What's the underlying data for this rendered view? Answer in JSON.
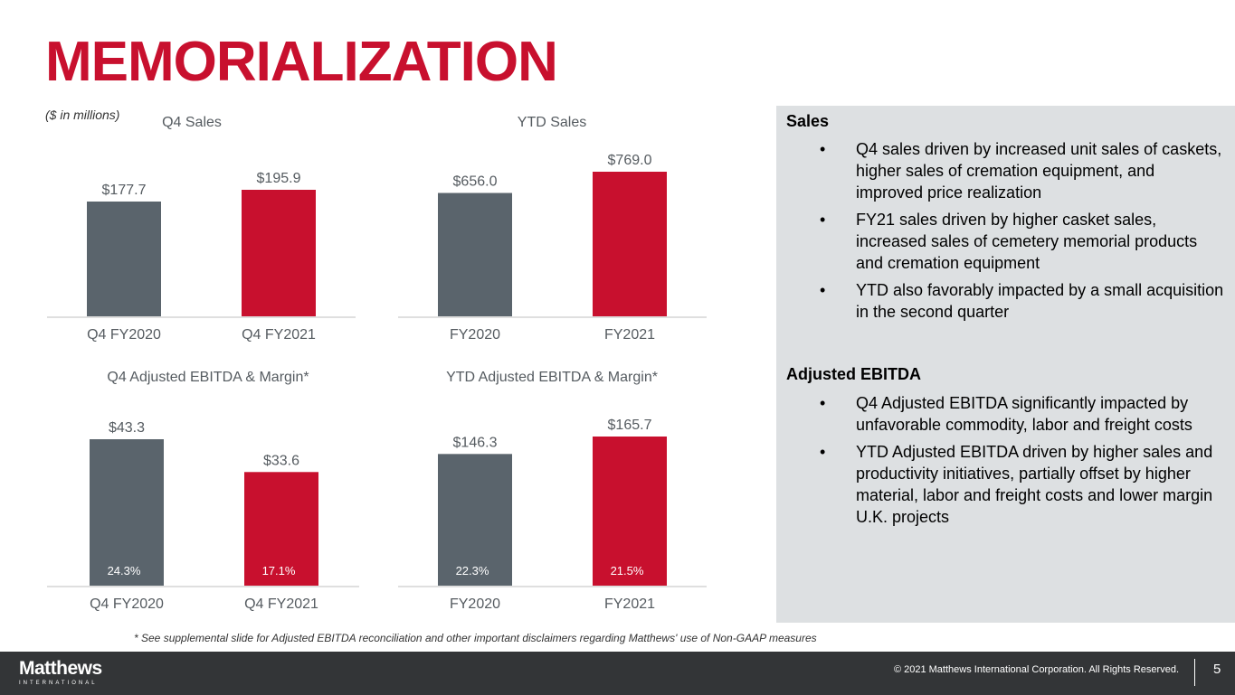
{
  "title": "MEMORIALIZATION",
  "units_note": "($ in millions)",
  "colors": {
    "prior": "#5a646c",
    "current": "#c8102e",
    "brand_red": "#c8102e"
  },
  "chart_data": [
    {
      "type": "bar",
      "title": "Q4 Sales",
      "categories": [
        "Q4 FY2020",
        "Q4 FY2021"
      ],
      "values": [
        177.7,
        195.9
      ],
      "value_labels": [
        "$177.7",
        "$195.9"
      ],
      "ylim": [
        0,
        210
      ]
    },
    {
      "type": "bar",
      "title": "YTD Sales",
      "categories": [
        "FY2020",
        "FY2021"
      ],
      "values": [
        656.0,
        769.0
      ],
      "value_labels": [
        "$656.0",
        "$769.0"
      ],
      "ylim": [
        0,
        825
      ]
    },
    {
      "type": "bar",
      "title": "Q4 Adjusted EBITDA & Margin*",
      "categories": [
        "Q4 FY2020",
        "Q4 FY2021"
      ],
      "values": [
        43.3,
        33.6
      ],
      "value_labels": [
        "$43.3",
        "$33.6"
      ],
      "margins": [
        "24.3%",
        "17.1%"
      ],
      "ylim": [
        0,
        47
      ]
    },
    {
      "type": "bar",
      "title": "YTD Adjusted EBITDA & Margin*",
      "categories": [
        "FY2020",
        "FY2021"
      ],
      "values": [
        146.3,
        165.7
      ],
      "value_labels": [
        "$146.3",
        "$165.7"
      ],
      "margins": [
        "22.3%",
        "21.5%"
      ],
      "ylim": [
        0,
        178
      ]
    }
  ],
  "panel": {
    "sales_heading": "Sales",
    "sales_bullets": [
      "Q4 sales driven by increased unit sales of caskets, higher sales of cremation equipment, and improved price realization",
      "FY21 sales driven by higher casket sales, increased sales of cemetery memorial products and cremation equipment",
      "YTD also favorably impacted by a small acquisition in the second quarter"
    ],
    "ebitda_heading": "Adjusted EBITDA",
    "ebitda_bullets": [
      "Q4 Adjusted EBITDA significantly impacted by unfavorable commodity, labor and freight costs",
      "YTD Adjusted EBITDA driven by higher sales and productivity initiatives, partially offset by higher material, labor and freight costs and lower margin U.K. projects"
    ],
    "bullet_char": "•"
  },
  "footnote": "* See supplemental slide for Adjusted EBITDA reconciliation and other important disclaimers regarding Matthews' use of Non-GAAP measures",
  "footer": {
    "logo_name": "Matthews",
    "logo_sub": "INTERNATIONAL",
    "copyright": "© 2021 Matthews International Corporation. All Rights Reserved.",
    "page_number": "5"
  }
}
